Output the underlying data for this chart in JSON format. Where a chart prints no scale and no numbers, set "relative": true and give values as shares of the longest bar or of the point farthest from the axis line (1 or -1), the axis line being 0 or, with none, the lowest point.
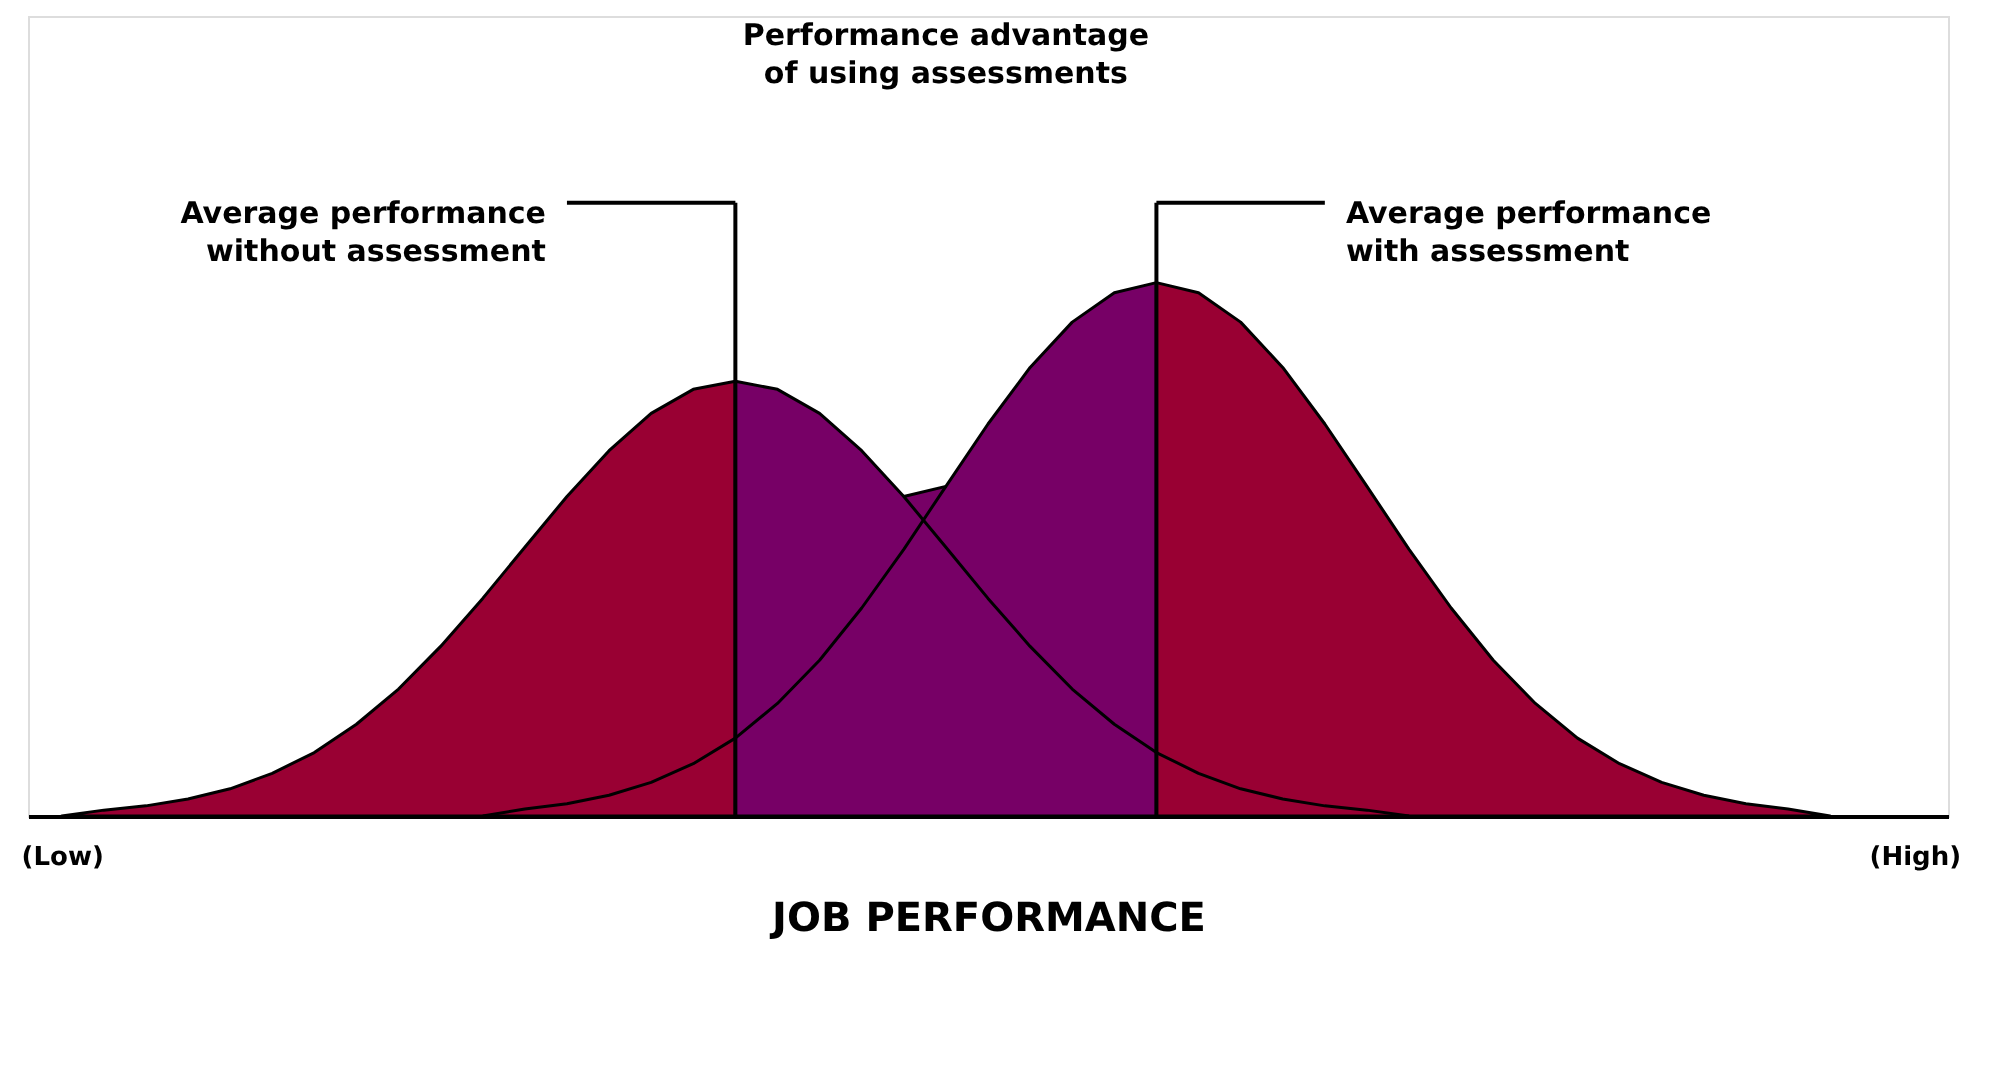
{
  "chart_data": {
    "type": "area",
    "relative": true,
    "xlabel": "JOB PERFORMANCE",
    "categories": [
      "(Low)",
      null,
      null,
      null,
      null,
      null,
      null,
      null,
      null,
      null,
      null,
      null,
      null,
      null,
      null,
      null,
      null,
      null,
      null,
      null,
      null,
      null,
      null,
      null,
      null,
      null,
      null,
      null,
      null,
      null,
      null,
      null,
      null,
      null,
      null,
      null,
      null,
      null,
      null,
      null,
      null,
      null,
      null,
      null,
      "(High)"
    ],
    "series": [
      {
        "color": "#990033",
        "values": [
          0,
          0.011,
          0.019,
          0.032,
          0.051,
          0.08,
          0.119,
          0.172,
          0.238,
          0.318,
          0.408,
          0.504,
          0.599,
          0.685,
          0.755,
          0.8,
          0.815,
          null,
          null,
          null,
          null,
          null,
          null,
          null,
          null,
          null,
          null,
          null,
          null,
          null,
          null,
          null,
          null,
          null,
          null,
          null,
          null,
          null,
          null,
          null,
          null,
          null,
          null,
          null,
          null
        ]
      },
      {
        "color": "#770066",
        "values": [
          null,
          null,
          null,
          null,
          null,
          null,
          null,
          null,
          null,
          null,
          null,
          null,
          null,
          null,
          null,
          null,
          0.815,
          0.8,
          0.755,
          0.685,
          0.599,
          0.618,
          0.735,
          0.841,
          0.926,
          0.981,
          1,
          null,
          null,
          null,
          null,
          null,
          null,
          null,
          null,
          null,
          null,
          null,
          null,
          null,
          null,
          null,
          null,
          null,
          null
        ]
      },
      {
        "color": "#990033",
        "values": [
          null,
          null,
          null,
          null,
          null,
          null,
          null,
          null,
          null,
          null,
          null,
          null,
          null,
          null,
          null,
          null,
          null,
          null,
          null,
          null,
          null,
          null,
          null,
          null,
          null,
          null,
          1,
          0.981,
          0.926,
          0.841,
          0.735,
          0.618,
          0.5,
          0.39,
          0.292,
          0.211,
          0.146,
          0.098,
          0.063,
          0.039,
          0.023,
          0.013,
          0,
          null,
          null
        ]
      },
      {
        "type": "line",
        "color": "#000000",
        "values": [
          null,
          null,
          null,
          null,
          null,
          null,
          null,
          null,
          null,
          null,
          0,
          0.013,
          0.023,
          0.039,
          0.063,
          0.098,
          0.146,
          0.211,
          0.292,
          0.39,
          0.5,
          0.618,
          null,
          null,
          null,
          null,
          null,
          null,
          null,
          null,
          null,
          null,
          null,
          null,
          null,
          null,
          null,
          null,
          null,
          null,
          null,
          null,
          null,
          null,
          null
        ]
      },
      {
        "type": "line",
        "color": "#000000",
        "values": [
          null,
          null,
          null,
          null,
          null,
          null,
          null,
          null,
          null,
          null,
          null,
          null,
          null,
          null,
          null,
          null,
          null,
          null,
          null,
          null,
          0.599,
          0.504,
          0.408,
          0.318,
          0.238,
          0.172,
          0.119,
          0.08,
          0.051,
          0.032,
          0.019,
          0.011,
          0,
          null,
          null,
          null,
          null,
          null,
          null,
          null,
          null,
          null,
          null,
          null,
          null
        ]
      }
    ],
    "annotations": [
      "Performance advantage of using assessments",
      "Average performance without assessment",
      "Average performance with assessment"
    ]
  }
}
